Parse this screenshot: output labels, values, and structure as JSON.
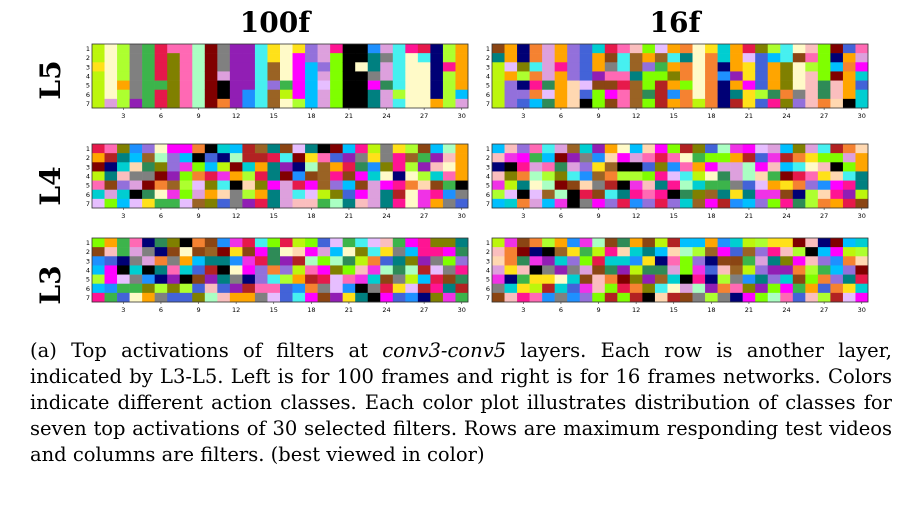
{
  "column_titles": [
    "100f",
    "16f"
  ],
  "row_labels": [
    "L5",
    "L4",
    "L3"
  ],
  "caption": {
    "prefix": "(a) Top activations of filters at ",
    "italic": "conv3-conv5",
    "suffix": " layers. Each row is another layer, indicated by L3-L5. Left is for 100 frames and right is for 16 frames networks. Colors indicate different action classes. Each color plot illustrates distribution of classes for seven top activations of 30 selected filters. Rows are maximum responding test videos and columns are filters. (best viewed in color)"
  },
  "palette": [
    "#e6194b",
    "#3cb44b",
    "#ffe119",
    "#4363d8",
    "#f58231",
    "#911eb4",
    "#46f0f0",
    "#f032e6",
    "#bcf60c",
    "#fabebe",
    "#008080",
    "#e6beff",
    "#9a6324",
    "#fffac8",
    "#800000",
    "#aaffc3",
    "#808000",
    "#ffd8b1",
    "#000075",
    "#808080",
    "#00bfff",
    "#ff69b4",
    "#7fff00",
    "#8b4513",
    "#ff00ff",
    "#1e90ff",
    "#ffa500",
    "#2e8b57",
    "#dda0dd",
    "#000000",
    "#ff1493",
    "#00ced1",
    "#9370db",
    "#adff2f",
    "#b22222"
  ],
  "chart_data": [
    {
      "type": "heatmap",
      "layer": "L5",
      "network": "100f",
      "y_ticks": [
        "1",
        "2",
        "3",
        "4",
        "5",
        "6",
        "7"
      ],
      "x_ticks": [
        "3",
        "6",
        "9",
        "12",
        "15",
        "18",
        "21",
        "24",
        "27",
        "30"
      ],
      "xlim": [
        0,
        30
      ],
      "ylim": [
        1,
        7
      ],
      "seed": 11,
      "vertical_bias": 0.8
    },
    {
      "type": "heatmap",
      "layer": "L5",
      "network": "16f",
      "y_ticks": [
        "1",
        "2",
        "3",
        "4",
        "5",
        "6",
        "7"
      ],
      "x_ticks": [
        "3",
        "6",
        "9",
        "12",
        "15",
        "18",
        "21",
        "24",
        "27",
        "30"
      ],
      "xlim": [
        0,
        30
      ],
      "ylim": [
        1,
        7
      ],
      "seed": 29,
      "vertical_bias": 0.6
    },
    {
      "type": "heatmap",
      "layer": "L4",
      "network": "100f",
      "y_ticks": [
        "1",
        "2",
        "3",
        "4",
        "5",
        "6",
        "7"
      ],
      "x_ticks": [
        "3",
        "6",
        "9",
        "12",
        "15",
        "18",
        "21",
        "24",
        "27",
        "30"
      ],
      "xlim": [
        0,
        30
      ],
      "ylim": [
        1,
        7
      ],
      "seed": 47,
      "vertical_bias": 0.2
    },
    {
      "type": "heatmap",
      "layer": "L4",
      "network": "16f",
      "y_ticks": [
        "1",
        "2",
        "3",
        "4",
        "5",
        "6",
        "7"
      ],
      "x_ticks": [
        "3",
        "6",
        "9",
        "12",
        "15",
        "18",
        "21",
        "24",
        "27",
        "30"
      ],
      "xlim": [
        0,
        30
      ],
      "ylim": [
        1,
        7
      ],
      "seed": 61,
      "vertical_bias": 0.1
    },
    {
      "type": "heatmap",
      "layer": "L3",
      "network": "100f",
      "y_ticks": [
        "1",
        "2",
        "3",
        "4",
        "5",
        "6",
        "7"
      ],
      "x_ticks": [
        "3",
        "6",
        "9",
        "12",
        "15",
        "18",
        "21",
        "24",
        "27",
        "30"
      ],
      "xlim": [
        0,
        30
      ],
      "ylim": [
        1,
        7
      ],
      "seed": 83,
      "vertical_bias": 0.05
    },
    {
      "type": "heatmap",
      "layer": "L3",
      "network": "16f",
      "y_ticks": [
        "1",
        "2",
        "3",
        "4",
        "5",
        "6",
        "7"
      ],
      "x_ticks": [
        "3",
        "6",
        "9",
        "12",
        "15",
        "18",
        "21",
        "24",
        "27",
        "30"
      ],
      "xlim": [
        0,
        30
      ],
      "ylim": [
        1,
        7
      ],
      "seed": 97,
      "vertical_bias": 0.05
    }
  ]
}
